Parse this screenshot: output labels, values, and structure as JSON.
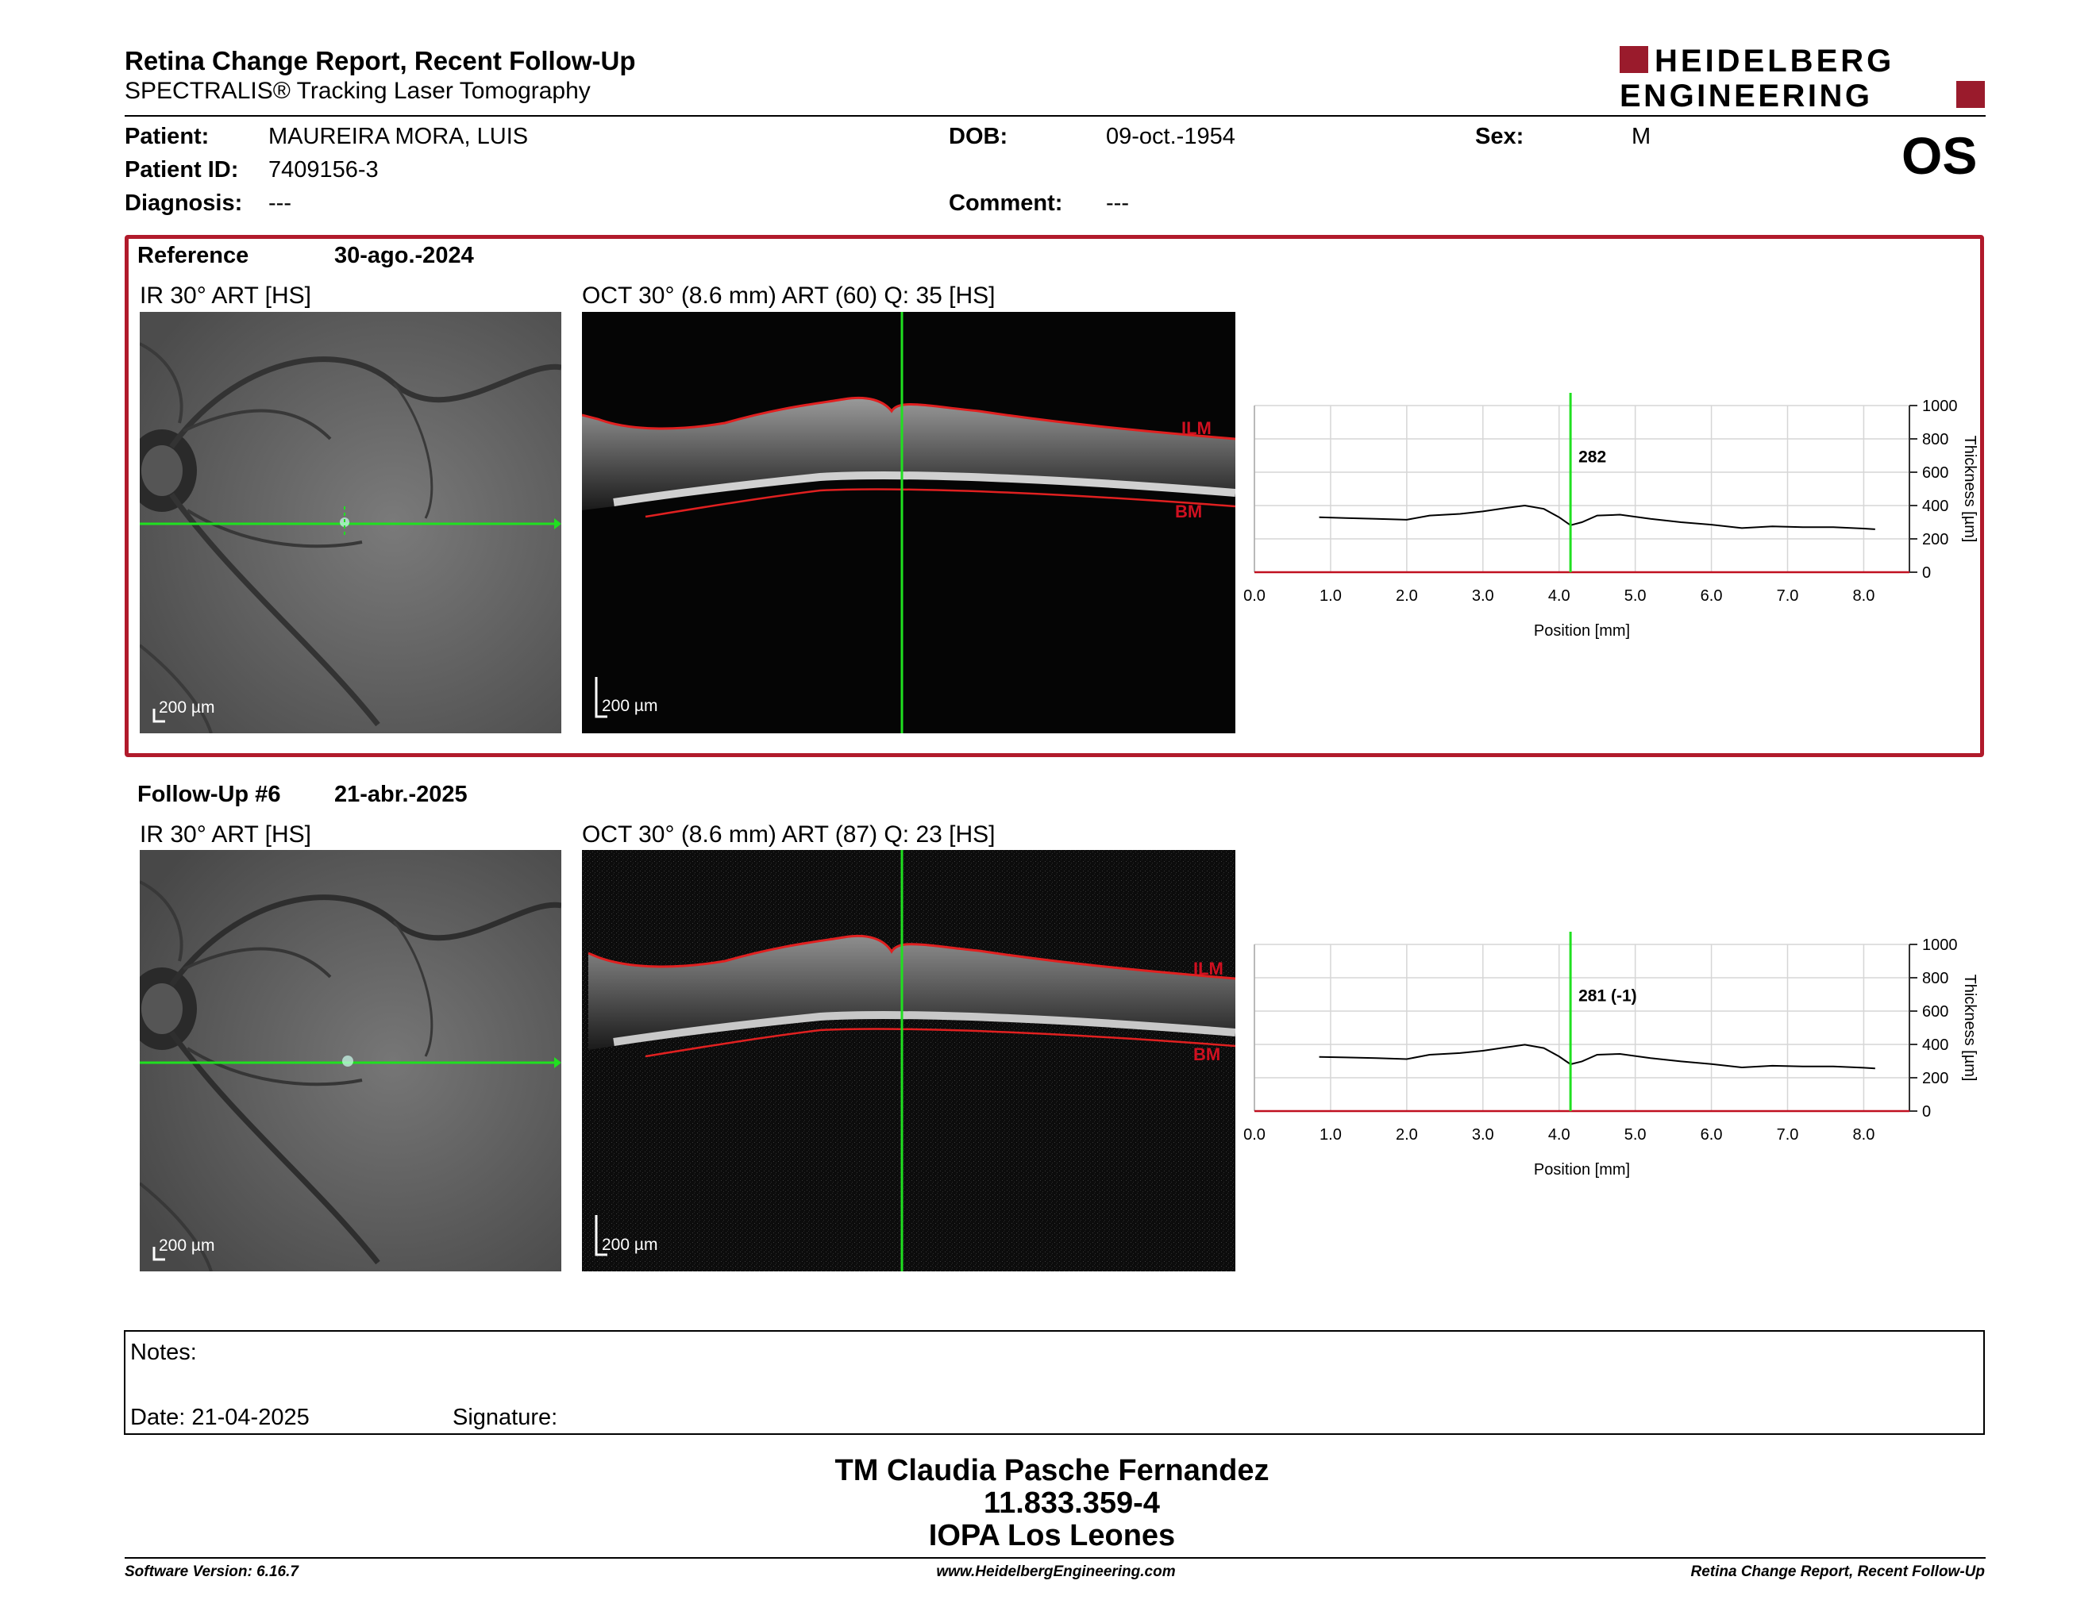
{
  "header": {
    "title": "Retina Change Report, Recent Follow-Up",
    "subtitle": "SPECTRALIS® Tracking Laser Tomography",
    "logo_text_line1": "HEIDELBERG",
    "logo_text_line2": "ENGINEERING",
    "eye": "OS"
  },
  "patient": {
    "patient_label": "Patient:",
    "patient_value": "MAUREIRA MORA, LUIS",
    "id_label": "Patient ID:",
    "id_value": "7409156-3",
    "diagnosis_label": "Diagnosis:",
    "diagnosis_value": "---",
    "dob_label": "DOB:",
    "dob_value": "09-oct.-1954",
    "comment_label": "Comment:",
    "comment_value": "---",
    "sex_label": "Sex:",
    "sex_value": "M"
  },
  "reference": {
    "label": "Reference",
    "date": "30-ago.-2024",
    "ir_title": "IR 30° ART [HS]",
    "oct_title": "OCT 30° (8.6 mm) ART (60) Q: 35 [HS]",
    "ir_scale": "200 µm",
    "oct_scale": "200 µm",
    "ilm": "ILM",
    "bm": "BM"
  },
  "followup": {
    "label": "Follow-Up #6",
    "date": "21-abr.-2025",
    "ir_title": "IR 30° ART [HS]",
    "oct_title": "OCT 30° (8.6 mm) ART (87) Q: 23 [HS]",
    "ir_scale": "200 µm",
    "oct_scale": "200 µm",
    "ilm": "ILM",
    "bm": "BM"
  },
  "chart_data": [
    {
      "type": "line",
      "xlabel": "Position [mm]",
      "ylabel": "Thickness [µm]",
      "xlim": [
        0.0,
        8.6
      ],
      "ylim": [
        0,
        1000
      ],
      "x_ticks": [
        "0.0",
        "1.0",
        "2.0",
        "3.0",
        "4.0",
        "5.0",
        "6.0",
        "7.0",
        "8.0"
      ],
      "y_ticks": [
        "0",
        "200",
        "400",
        "600",
        "800",
        "1000"
      ],
      "marker_x": 4.15,
      "marker_label": "282",
      "x": [
        0.85,
        1.2,
        1.6,
        2.0,
        2.3,
        2.7,
        3.0,
        3.3,
        3.55,
        3.8,
        4.0,
        4.15,
        4.3,
        4.5,
        4.8,
        5.2,
        5.6,
        6.0,
        6.4,
        6.8,
        7.2,
        7.6,
        8.0,
        8.15
      ],
      "values": [
        330,
        325,
        320,
        315,
        340,
        350,
        365,
        385,
        400,
        380,
        330,
        282,
        300,
        340,
        345,
        320,
        300,
        285,
        265,
        275,
        270,
        270,
        262,
        258
      ]
    },
    {
      "type": "line",
      "xlabel": "Position [mm]",
      "ylabel": "Thickness [µm]",
      "xlim": [
        0.0,
        8.6
      ],
      "ylim": [
        0,
        1000
      ],
      "x_ticks": [
        "0.0",
        "1.0",
        "2.0",
        "3.0",
        "4.0",
        "5.0",
        "6.0",
        "7.0",
        "8.0"
      ],
      "y_ticks": [
        "0",
        "200",
        "400",
        "600",
        "800",
        "1000"
      ],
      "marker_x": 4.15,
      "marker_label": "281 (-1)",
      "x": [
        0.85,
        1.2,
        1.6,
        2.0,
        2.3,
        2.7,
        3.0,
        3.3,
        3.55,
        3.8,
        4.0,
        4.15,
        4.3,
        4.5,
        4.8,
        5.2,
        5.6,
        6.0,
        6.4,
        6.8,
        7.2,
        7.6,
        8.0,
        8.15
      ],
      "values": [
        325,
        322,
        318,
        312,
        338,
        348,
        362,
        382,
        398,
        378,
        328,
        281,
        298,
        338,
        343,
        318,
        298,
        282,
        262,
        272,
        268,
        268,
        260,
        256
      ]
    }
  ],
  "notes": {
    "notes_label": "Notes:",
    "date_label": "Date: 21-04-2025",
    "signature_label": "Signature:"
  },
  "signatory": {
    "name": "TM Claudia Pasche Fernandez",
    "id": "11.833.359-4",
    "institution": "IOPA Los Leones"
  },
  "footer": {
    "software": "Software Version: 6.16.7",
    "url": "www.HeidelbergEngineering.com",
    "report": "Retina Change Report, Recent Follow-Up"
  },
  "colors": {
    "accent": "#b11a2b",
    "green": "#20e020",
    "red_line": "#e02020"
  }
}
